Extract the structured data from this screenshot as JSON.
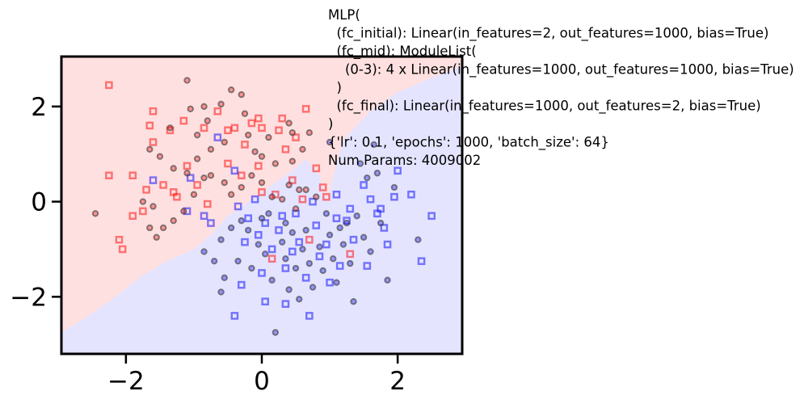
{
  "chart_data": {
    "type": "scatter",
    "title": "",
    "xlabel": "",
    "ylabel": "",
    "xlim": [
      -2.95,
      2.95
    ],
    "ylim": [
      -3.2,
      3.05
    ],
    "xticks": [
      -2,
      0,
      2
    ],
    "yticks": [
      -2,
      0,
      2
    ],
    "xtick_labels": [
      "−2",
      "0",
      "2"
    ],
    "ytick_labels": [
      "−2",
      "0",
      "2"
    ],
    "grid": false,
    "legend": "none",
    "colors": {
      "class0": "#ff0000",
      "class1": "#0000ff",
      "region0": "#ffe0e0",
      "region1": "#e4e4ff",
      "correct_edge": "#444444"
    },
    "decision_boundary": [
      [
        -2.95,
        -2.75
      ],
      [
        -2.6,
        -2.45
      ],
      [
        -2.2,
        -2.05
      ],
      [
        -1.8,
        -1.6
      ],
      [
        -1.4,
        -1.25
      ],
      [
        -1.0,
        -1.0
      ],
      [
        -0.75,
        -0.7
      ],
      [
        -0.5,
        -0.3
      ],
      [
        -0.2,
        0.0
      ],
      [
        0.1,
        0.3
      ],
      [
        0.4,
        0.6
      ],
      [
        0.65,
        0.9
      ],
      [
        0.85,
        0.55
      ],
      [
        0.95,
        0.0
      ],
      [
        1.2,
        1.3
      ],
      [
        1.6,
        1.9
      ],
      [
        2.0,
        2.3
      ],
      [
        2.4,
        2.55
      ],
      [
        2.95,
        2.85
      ]
    ],
    "series": [
      {
        "marker": "square",
        "class": "class0",
        "points": [
          [
            -2.25,
            2.45
          ],
          [
            -1.6,
            1.9
          ],
          [
            -1.65,
            1.6
          ],
          [
            -1.6,
            1.25
          ],
          [
            -1.35,
            1.5
          ],
          [
            -1.3,
            0.2
          ],
          [
            -1.15,
            1.7
          ],
          [
            -1.45,
            0.35
          ],
          [
            -1.1,
            0.75
          ],
          [
            -0.85,
            1.55
          ],
          [
            -0.65,
            1.9
          ],
          [
            -0.5,
            1.5
          ],
          [
            -0.5,
            0.8
          ],
          [
            -0.4,
            1.55
          ],
          [
            -0.25,
            1.2
          ],
          [
            -0.15,
            1.65
          ],
          [
            -0.05,
            1.75
          ],
          [
            0.0,
            1.55
          ],
          [
            -0.05,
            0.75
          ],
          [
            0.0,
            0.2
          ],
          [
            0.3,
            1.75
          ],
          [
            0.35,
            1.1
          ],
          [
            0.45,
            0.45
          ],
          [
            0.65,
            1.95
          ],
          [
            0.8,
            0.7
          ],
          [
            0.9,
            0.3
          ],
          [
            0.95,
            0.1
          ],
          [
            0.6,
            0.05
          ],
          [
            -2.25,
            0.55
          ],
          [
            -1.9,
            0.55
          ],
          [
            -1.7,
            0.25
          ],
          [
            -1.9,
            -0.3
          ],
          [
            -2.1,
            -0.8
          ],
          [
            -2.05,
            -1.0
          ],
          [
            -1.75,
            -0.2
          ],
          [
            -1.25,
            0.1
          ],
          [
            -0.95,
            0.35
          ],
          [
            -0.8,
            -0.05
          ],
          [
            -0.3,
            0.55
          ],
          [
            0.2,
            0.15
          ],
          [
            0.15,
            -1.2
          ],
          [
            0.7,
            -0.8
          ],
          [
            0.5,
            1.35
          ],
          [
            1.3,
            -1.1
          ],
          [
            0.25,
            1.5
          ]
        ]
      },
      {
        "marker": "square",
        "class": "class1",
        "points": [
          [
            -1.6,
            0.45
          ],
          [
            -1.1,
            -0.2
          ],
          [
            -1.05,
            0.5
          ],
          [
            -0.85,
            -0.3
          ],
          [
            -0.75,
            -0.45
          ],
          [
            -0.65,
            1.35
          ],
          [
            -0.4,
            0.65
          ],
          [
            -0.35,
            -0.1
          ],
          [
            -0.25,
            -0.85
          ],
          [
            -0.2,
            -0.35
          ],
          [
            -0.05,
            -0.7
          ],
          [
            0.0,
            -1.5
          ],
          [
            0.05,
            -0.45
          ],
          [
            0.15,
            -1.0
          ],
          [
            0.25,
            -0.6
          ],
          [
            0.35,
            -1.4
          ],
          [
            0.45,
            -1.05
          ],
          [
            0.5,
            -0.25
          ],
          [
            0.55,
            -0.85
          ],
          [
            0.65,
            -1.6
          ],
          [
            0.7,
            -2.4
          ],
          [
            0.8,
            -0.5
          ],
          [
            0.85,
            -1.15
          ],
          [
            0.95,
            -0.9
          ],
          [
            1.1,
            -0.35
          ],
          [
            1.15,
            -1.35
          ],
          [
            1.25,
            -0.4
          ],
          [
            1.35,
            -0.8
          ],
          [
            1.5,
            0.35
          ],
          [
            1.6,
            0.05
          ],
          [
            1.75,
            -0.15
          ],
          [
            1.8,
            -0.55
          ],
          [
            1.95,
            0.1
          ],
          [
            2.0,
            0.65
          ],
          [
            2.2,
            0.15
          ],
          [
            2.35,
            -1.25
          ],
          [
            2.5,
            -0.3
          ],
          [
            -0.3,
            -1.75
          ],
          [
            0.05,
            -2.1
          ],
          [
            -0.4,
            -2.4
          ],
          [
            0.35,
            -2.15
          ],
          [
            1.0,
            -1.7
          ],
          [
            1.55,
            -1.35
          ],
          [
            1.1,
            0.15
          ],
          [
            0.75,
            0.0
          ],
          [
            -0.1,
            0.05
          ],
          [
            0.3,
            -0.3
          ],
          [
            1.7,
            -0.25
          ],
          [
            1.3,
            -0.15
          ],
          [
            1.85,
            -0.9
          ]
        ]
      },
      {
        "marker": "circle",
        "class": "class0",
        "points": [
          [
            -1.1,
            2.55
          ],
          [
            -1.35,
            1.55
          ],
          [
            -1.05,
            1.95
          ],
          [
            -0.95,
            1.4
          ],
          [
            -0.8,
            1.7
          ],
          [
            -0.75,
            1.1
          ],
          [
            -0.6,
            2.05
          ],
          [
            -0.55,
            1.25
          ],
          [
            -0.45,
            2.35
          ],
          [
            -0.3,
            2.25
          ],
          [
            -0.25,
            1.85
          ],
          [
            -0.2,
            1.4
          ],
          [
            -0.1,
            1.05
          ],
          [
            0.0,
            0.95
          ],
          [
            0.1,
            1.35
          ],
          [
            0.2,
            0.8
          ],
          [
            0.4,
            1.65
          ],
          [
            0.45,
            0.85
          ],
          [
            0.55,
            0.25
          ],
          [
            0.6,
            1.1
          ],
          [
            0.7,
            1.45
          ],
          [
            -1.65,
            1.1
          ],
          [
            -1.5,
            0.95
          ],
          [
            -1.3,
            0.7
          ],
          [
            -1.1,
            0.6
          ],
          [
            -0.95,
            0.9
          ],
          [
            -0.85,
            0.5
          ],
          [
            -1.6,
            -0.1
          ],
          [
            -1.55,
            -0.75
          ],
          [
            -1.45,
            -0.55
          ],
          [
            -1.3,
            -0.4
          ],
          [
            -1.15,
            -0.2
          ],
          [
            -1.0,
            0.15
          ],
          [
            -0.75,
            0.55
          ],
          [
            -0.55,
            0.4
          ],
          [
            -0.45,
            0.15
          ],
          [
            -0.3,
            0.3
          ],
          [
            -0.15,
            0.55
          ],
          [
            0.0,
            0.4
          ],
          [
            0.15,
            0.1
          ],
          [
            0.3,
            0.05
          ],
          [
            0.4,
            0.35
          ],
          [
            0.5,
            -0.15
          ],
          [
            0.65,
            0.25
          ],
          [
            0.8,
            0.1
          ],
          [
            -2.45,
            -0.25
          ],
          [
            -1.75,
            0.0
          ],
          [
            -1.65,
            -0.55
          ],
          [
            -0.85,
            2.0
          ],
          [
            0.45,
            1.45
          ]
        ]
      },
      {
        "marker": "circle",
        "class": "class1",
        "points": [
          [
            -0.85,
            -1.05
          ],
          [
            -0.7,
            -1.25
          ],
          [
            -0.6,
            -1.9
          ],
          [
            -0.55,
            -1.6
          ],
          [
            -0.45,
            -0.55
          ],
          [
            -0.35,
            -1.25
          ],
          [
            -0.3,
            -0.4
          ],
          [
            -0.15,
            -1.4
          ],
          [
            -0.05,
            -0.9
          ],
          [
            0.05,
            -1.1
          ],
          [
            0.1,
            -0.25
          ],
          [
            0.15,
            -1.65
          ],
          [
            0.2,
            -2.75
          ],
          [
            0.3,
            -0.85
          ],
          [
            0.35,
            -1.2
          ],
          [
            0.4,
            -1.85
          ],
          [
            0.45,
            -0.65
          ],
          [
            0.5,
            -1.4
          ],
          [
            0.55,
            -2.05
          ],
          [
            0.6,
            -1.0
          ],
          [
            0.7,
            -1.3
          ],
          [
            0.75,
            -1.8
          ],
          [
            0.85,
            -0.95
          ],
          [
            0.9,
            -1.45
          ],
          [
            1.0,
            -0.7
          ],
          [
            1.05,
            -1.2
          ],
          [
            1.1,
            -1.7
          ],
          [
            1.2,
            -0.9
          ],
          [
            1.3,
            -1.3
          ],
          [
            1.4,
            -0.3
          ],
          [
            1.5,
            -0.75
          ],
          [
            1.55,
            0.5
          ],
          [
            1.6,
            -1.05
          ],
          [
            1.7,
            0.6
          ],
          [
            1.75,
            -0.45
          ],
          [
            1.85,
            -1.65
          ],
          [
            1.95,
            0.3
          ],
          [
            2.3,
            -0.8
          ],
          [
            1.35,
            -2.1
          ],
          [
            1.65,
            1.2
          ],
          [
            1.0,
            1.25
          ],
          [
            1.45,
            0.8
          ],
          [
            0.95,
            -0.25
          ],
          [
            1.25,
            -0.45
          ],
          [
            0.35,
            -0.45
          ],
          [
            -0.2,
            -0.6
          ],
          [
            0.0,
            -0.35
          ],
          [
            0.65,
            -0.6
          ],
          [
            1.15,
            -0.55
          ],
          [
            -0.6,
            -0.8
          ]
        ]
      }
    ],
    "annotation": [
      "MLP(",
      "  (fc_initial): Linear(in_features=2, out_features=1000, bias=True)",
      "  (fc_mid): ModuleList(",
      "    (0-3): 4 x Linear(in_features=1000, out_features=1000, bias=True)",
      "  )",
      "  (fc_final): Linear(in_features=1000, out_features=2, bias=True)",
      ")",
      "{'lr': 0.1, 'epochs': 1000, 'batch_size': 64}",
      "Num Params: 4009002"
    ]
  }
}
